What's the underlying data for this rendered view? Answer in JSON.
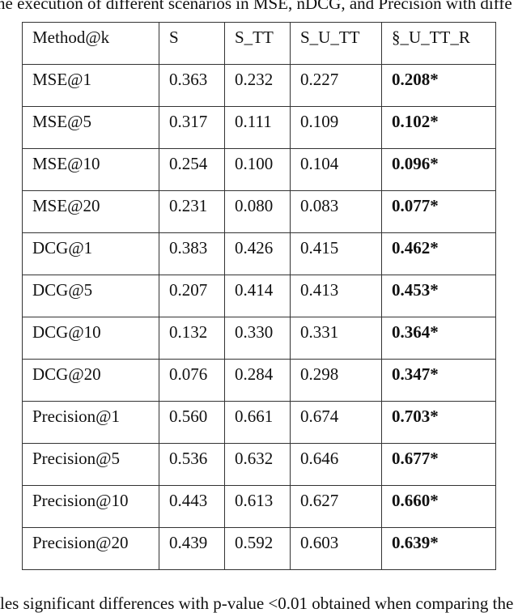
{
  "caption_top": "he execution of different scenarios in MSE, nDCG, and Precision with diffe",
  "caption_bottom": "les significant differences with p-value <0.01 obtained when comparing the",
  "table": {
    "headers": [
      "Method@k",
      "S",
      "S_TT",
      "S_U_TT",
      "§_U_TT_R"
    ],
    "rows": [
      [
        "MSE@1",
        "0.363",
        "0.232",
        "0.227",
        "0.208*"
      ],
      [
        "MSE@5",
        "0.317",
        "0.111",
        "0.109",
        "0.102*"
      ],
      [
        "MSE@10",
        "0.254",
        "0.100",
        "0.104",
        "0.096*"
      ],
      [
        "MSE@20",
        "0.231",
        "0.080",
        "0.083",
        "0.077*"
      ],
      [
        "DCG@1",
        "0.383",
        "0.426",
        "0.415",
        "0.462*"
      ],
      [
        "DCG@5",
        "0.207",
        "0.414",
        "0.413",
        "0.453*"
      ],
      [
        "DCG@10",
        "0.132",
        "0.330",
        "0.331",
        "0.364*"
      ],
      [
        "DCG@20",
        "0.076",
        "0.284",
        "0.298",
        "0.347*"
      ],
      [
        "Precision@1",
        "0.560",
        "0.661",
        "0.674",
        "0.703*"
      ],
      [
        "Precision@5",
        "0.536",
        "0.632",
        "0.646",
        "0.677*"
      ],
      [
        "Precision@10",
        "0.443",
        "0.613",
        "0.627",
        "0.660*"
      ],
      [
        "Precision@20",
        "0.439",
        "0.592",
        "0.603",
        "0.639*"
      ]
    ]
  }
}
